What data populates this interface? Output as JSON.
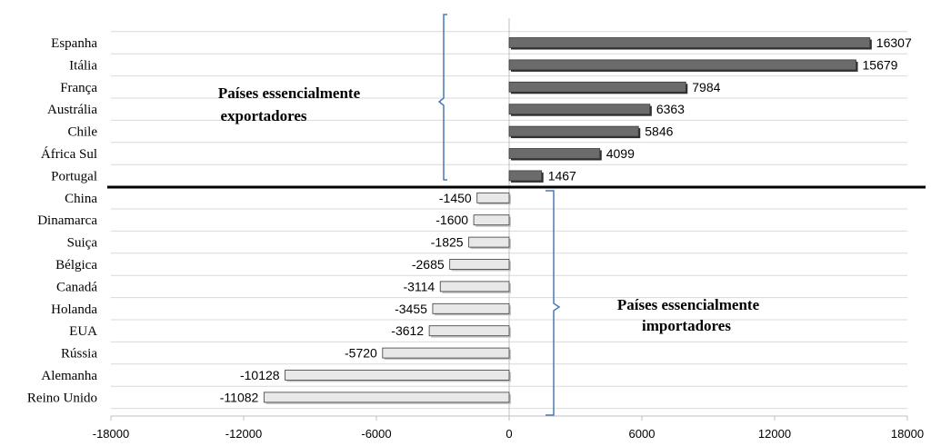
{
  "chart_data": {
    "type": "bar",
    "orientation": "horizontal",
    "categories": [
      "Espanha",
      "Itália",
      "França",
      "Austrália",
      "Chile",
      "África Sul",
      "Portugal",
      "China",
      "Dinamarca",
      "Suiça",
      "Bélgica",
      "Canadá",
      "Holanda",
      "EUA",
      "Rússia",
      "Alemanha",
      "Reino Unido"
    ],
    "values": [
      16307,
      15679,
      7984,
      6363,
      5846,
      4099,
      1467,
      -1450,
      -1600,
      -1825,
      -2685,
      -3114,
      -3455,
      -3612,
      -5720,
      -10128,
      -11082
    ],
    "data_labels": [
      "16307",
      "15679",
      "7984",
      "6363",
      "5846",
      "4099",
      "1467",
      "-1450",
      "-1600",
      "-1825",
      "-2685",
      "-3114",
      "-3455",
      "-3612",
      "-5720",
      "-10128",
      "-11082"
    ],
    "xlim": [
      -18000,
      18000
    ],
    "x_ticks": [
      -18000,
      -12000,
      -6000,
      0,
      6000,
      12000,
      18000
    ],
    "x_tick_labels": [
      "-18000",
      "-12000",
      "-6000",
      "0",
      "6000",
      "12000",
      "18000"
    ],
    "grid": true,
    "colors": {
      "positive": "#6b6b6b",
      "negative": "#e8e8e8",
      "outline": "#3a3a3a",
      "divider": "#000000",
      "brace": "#4a7ab5",
      "grid": "#d9d9d9"
    },
    "annotations": [
      {
        "lines": [
          "Países essencialmente",
          "exportadores"
        ],
        "group": "exporters"
      },
      {
        "lines": [
          "Países essencialmente",
          "importadores"
        ],
        "group": "importers"
      }
    ]
  }
}
